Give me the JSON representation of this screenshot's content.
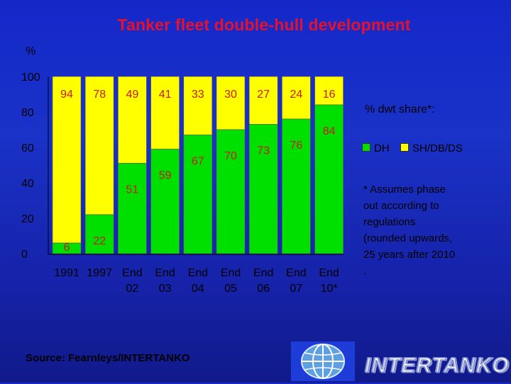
{
  "slide": {
    "title": "Tanker fleet double-hull development",
    "unit_label": "%",
    "source": "Source: Fearnleys/INTERTANKO",
    "brand_logo_text": "INTERTANKO"
  },
  "legend": {
    "heading": "% dwt share*:",
    "items": [
      {
        "label": "DH",
        "color": "#00e000"
      },
      {
        "label": "SH/DB/DS",
        "color": "#ffff00"
      }
    ]
  },
  "footnote": {
    "lines": [
      "* Assumes phase",
      "out according to",
      "regulations",
      "(rounded upwards,",
      "25 years after 2010",
      "."
    ]
  },
  "chart_data": {
    "type": "bar",
    "stacked": true,
    "categories": [
      "1991",
      "1997",
      "End 02",
      "End 03",
      "End 04",
      "End 05",
      "End 06",
      "End 07",
      "End 10*"
    ],
    "category_lines": [
      [
        "1991"
      ],
      [
        "1997"
      ],
      [
        "End",
        "02"
      ],
      [
        "End",
        "03"
      ],
      [
        "End",
        "04"
      ],
      [
        "End",
        "05"
      ],
      [
        "End",
        "06"
      ],
      [
        "End",
        "07"
      ],
      [
        "End",
        "10*"
      ]
    ],
    "series": [
      {
        "name": "DH",
        "color": "#00e000",
        "values": [
          6,
          22,
          51,
          59,
          67,
          70,
          73,
          76,
          84
        ]
      },
      {
        "name": "SH/DB/DS",
        "color": "#ffff00",
        "values": [
          94,
          78,
          49,
          41,
          33,
          30,
          27,
          24,
          16
        ]
      }
    ],
    "ylim": [
      0,
      100
    ],
    "yticks": [
      0,
      20,
      40,
      60,
      80,
      100
    ],
    "xlabel": "",
    "ylabel": "%",
    "grid": false,
    "legend_position": "right"
  }
}
